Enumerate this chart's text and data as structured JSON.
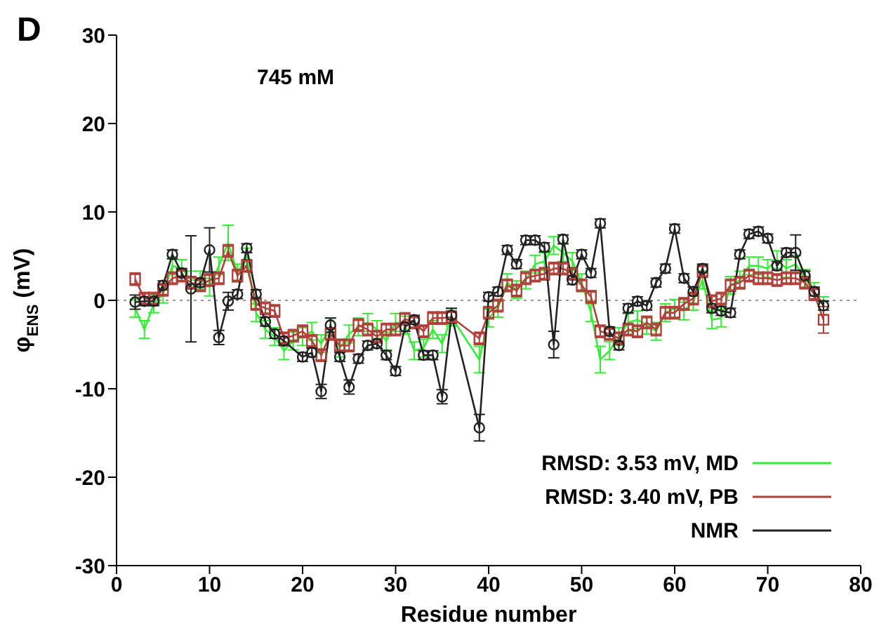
{
  "chart_data": {
    "type": "line",
    "title": "D",
    "annotations": [
      "745 mM"
    ],
    "xlabel": "Residue number",
    "ylabel": "φ$_{ENS}$ (mV)",
    "x": [
      2,
      3,
      4,
      5,
      6,
      7,
      8,
      9,
      10,
      11,
      12,
      13,
      14,
      15,
      16,
      17,
      18,
      19,
      20,
      21,
      22,
      23,
      24,
      25,
      26,
      27,
      28,
      29,
      30,
      31,
      32,
      33,
      34,
      35,
      36,
      37,
      38,
      39,
      40,
      41,
      42,
      43,
      44,
      45,
      46,
      47,
      48,
      49,
      50,
      51,
      52,
      53,
      54,
      55,
      56,
      57,
      58,
      59,
      60,
      61,
      62,
      63,
      64,
      65,
      66,
      67,
      68,
      69,
      70,
      71,
      72,
      73,
      74,
      75,
      76
    ],
    "xlim": [
      0,
      80
    ],
    "xticks": [
      0,
      10,
      20,
      30,
      40,
      50,
      60,
      70,
      80
    ],
    "ylim": [
      -30,
      30
    ],
    "yticks": [
      -30,
      -20,
      -10,
      0,
      10,
      20,
      30
    ],
    "legend": "bottom right",
    "ref_lines": [
      {
        "axis": "y",
        "value": 0,
        "color": "#999999",
        "line_style": "dotted"
      }
    ],
    "series": [
      {
        "name": "RMSD: 3.53 mV, MD",
        "color": "#33ee33",
        "marker": "none",
        "values": [
          -0.9,
          -3.3,
          -0.4,
          0.7,
          3.9,
          3.6,
          2.3,
          2.3,
          1.5,
          3.9,
          6.5,
          3.1,
          4.9,
          -1.4,
          -3.3,
          -4.1,
          -5.7,
          -4.6,
          -4.1,
          -3.5,
          -4.9,
          -3.0,
          -5.4,
          -3.8,
          -3.0,
          -2.5,
          -3.3,
          -4.6,
          -2.5,
          -2.8,
          -5.7,
          -5.4,
          -3.3,
          -4.9,
          -1.9,
          null,
          null,
          -6.7,
          -2.0,
          -0.9,
          2.0,
          1.2,
          2.3,
          4.1,
          4.4,
          6.2,
          5.4,
          4.4,
          2.0,
          -1.4,
          -6.7,
          -5.7,
          -4.1,
          -2.5,
          -2.2,
          -2.8,
          -3.5,
          -1.4,
          -0.9,
          -1.2,
          -0.1,
          2.3,
          -2.2,
          -2.0,
          1.7,
          2.3,
          3.9,
          3.9,
          3.6,
          4.6,
          3.6,
          4.1,
          2.5,
          1.0,
          -0.6
        ],
        "errors": [
          1,
          1,
          1,
          1,
          1,
          1,
          1,
          1,
          1,
          1,
          2,
          1,
          1,
          1,
          1,
          1,
          1,
          1,
          1,
          1,
          1,
          1,
          1,
          1,
          1,
          1,
          1,
          1,
          1,
          1,
          1,
          1,
          1,
          1,
          1,
          null,
          null,
          1.5,
          1,
          1,
          1,
          1,
          1,
          1,
          1,
          1,
          1,
          1,
          1,
          1,
          1.5,
          1,
          1,
          1,
          1,
          1,
          1,
          1,
          1,
          1,
          1,
          1,
          1,
          1,
          1,
          1,
          1,
          1,
          1,
          1,
          1,
          1,
          1,
          1,
          1
        ]
      },
      {
        "name": "RMSD: 3.40 mV, PB",
        "color": "#b0403a",
        "marker": "square",
        "values": [
          2.4,
          0.2,
          0.2,
          1.2,
          2.5,
          2.8,
          2.0,
          1.7,
          2.3,
          2.5,
          5.6,
          2.8,
          3.9,
          -0.4,
          -0.9,
          -1.2,
          -4.3,
          -4.0,
          -3.5,
          -4.6,
          -6.2,
          -3.8,
          -5.1,
          -5.1,
          -2.8,
          -3.3,
          -4.1,
          -3.3,
          -3.3,
          -2.1,
          -2.5,
          -3.5,
          -2.0,
          -2.0,
          -1.9,
          null,
          null,
          -4.3,
          -1.4,
          -0.6,
          1.7,
          1.1,
          2.5,
          2.8,
          3.0,
          3.6,
          3.6,
          3.0,
          1.7,
          0.4,
          -3.5,
          -3.8,
          -4.3,
          -3.3,
          -3.5,
          -2.5,
          -3.3,
          -1.4,
          -1.4,
          -0.4,
          0.2,
          3.3,
          -0.1,
          0.2,
          1.7,
          2.0,
          2.8,
          2.5,
          2.5,
          2.3,
          2.5,
          2.5,
          2.0,
          0.7,
          -2.2
        ],
        "errors": [
          0.7,
          0.7,
          0.7,
          0.7,
          0.7,
          0.7,
          0.7,
          0.7,
          0.7,
          0.7,
          0.7,
          0.7,
          0.7,
          0.7,
          0.7,
          0.7,
          0.7,
          0.7,
          0.7,
          0.7,
          0.7,
          0.7,
          0.7,
          0.7,
          0.7,
          0.7,
          0.7,
          0.7,
          0.7,
          0.7,
          0.7,
          0.7,
          0.7,
          0.7,
          0.7,
          null,
          null,
          0.7,
          0.7,
          0.7,
          0.7,
          0.7,
          0.7,
          0.7,
          0.7,
          0.7,
          0.7,
          0.7,
          0.7,
          0.7,
          0.7,
          0.7,
          0.7,
          0.7,
          0.7,
          0.7,
          0.7,
          0.7,
          0.7,
          0.7,
          0.7,
          0.7,
          0.7,
          0.7,
          0.7,
          0.7,
          0.7,
          0.7,
          0.7,
          0.7,
          0.7,
          0.7,
          0.7,
          0.7,
          1.5
        ]
      },
      {
        "name": "NMR",
        "color": "#222222",
        "marker": "circle",
        "values": [
          -0.2,
          -0.1,
          -0.1,
          1.7,
          5.2,
          3.1,
          1.3,
          2.0,
          5.7,
          -4.2,
          -0.1,
          0.7,
          5.9,
          0.7,
          -2.4,
          -3.8,
          -4.6,
          null,
          -6.4,
          -5.9,
          -10.3,
          -2.8,
          -6.4,
          -9.8,
          -6.6,
          -5.1,
          -4.9,
          -6.2,
          -8.0,
          -3.0,
          -2.2,
          -6.2,
          -6.2,
          -10.9,
          -1.7,
          null,
          null,
          -14.4,
          0.4,
          1.0,
          5.7,
          4.1,
          6.8,
          6.8,
          6.0,
          -5.0,
          6.9,
          2.3,
          5.2,
          3.1,
          8.7,
          -3.5,
          -5.1,
          -0.9,
          -0.1,
          -0.6,
          2.0,
          3.6,
          8.1,
          2.5,
          1.0,
          3.6,
          -0.9,
          -1.2,
          -1.4,
          5.2,
          7.5,
          7.8,
          7.0,
          3.9,
          5.4,
          5.4,
          2.8,
          1.0,
          -0.6
        ],
        "errors": [
          0.8,
          0.5,
          0.5,
          0.5,
          0.5,
          0.5,
          6,
          0.5,
          2.5,
          0.8,
          1,
          0.5,
          0.5,
          0.5,
          0.5,
          0.5,
          0.5,
          null,
          0.5,
          0.5,
          0.8,
          0.8,
          0.5,
          0.8,
          0.5,
          0.5,
          0.5,
          0.5,
          0.5,
          0.5,
          0.5,
          0.5,
          0.5,
          0.8,
          0.8,
          null,
          null,
          1.5,
          0.5,
          0.5,
          0.5,
          0.5,
          0.5,
          0.5,
          0.5,
          1.5,
          0.5,
          0.5,
          0.5,
          0.5,
          0.5,
          0.5,
          0.5,
          0.5,
          0.5,
          0.5,
          0.5,
          0.5,
          0.5,
          0.5,
          0.5,
          0.5,
          0.5,
          0.5,
          0.5,
          0.5,
          0.5,
          0.5,
          0.5,
          0.5,
          0.5,
          2,
          0.5,
          0.5,
          0.5
        ]
      }
    ]
  }
}
